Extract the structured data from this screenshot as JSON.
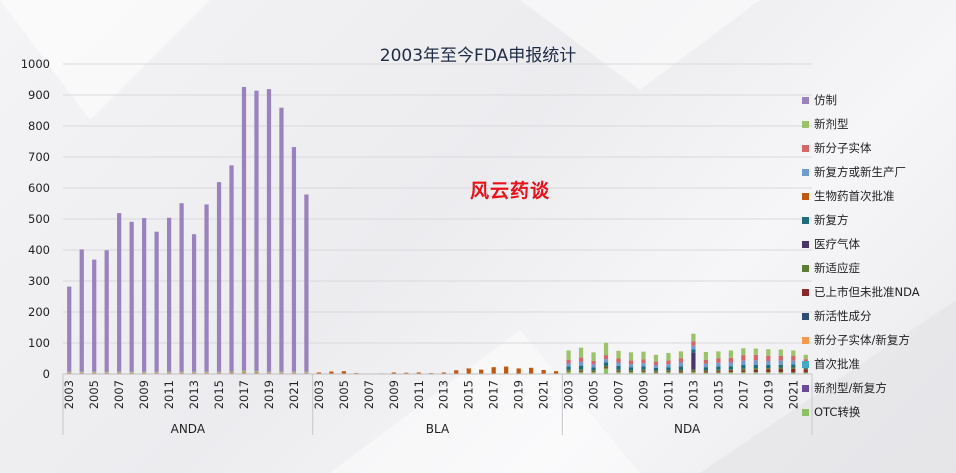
{
  "chart_data": {
    "type": "bar",
    "stacked": true,
    "title": "2003年至今FDA申报统计",
    "watermark": "风云药谈",
    "ylim": [
      0,
      1000
    ],
    "yticks": [
      0,
      100,
      200,
      300,
      400,
      500,
      600,
      700,
      800,
      900,
      1000
    ],
    "grid": true,
    "legend_position": "right",
    "years": [
      2003,
      2004,
      2005,
      2006,
      2007,
      2008,
      2009,
      2010,
      2011,
      2012,
      2013,
      2014,
      2015,
      2016,
      2017,
      2018,
      2019,
      2020,
      2021,
      2022
    ],
    "year_tick_labels": [
      "2003",
      "2005",
      "2007",
      "2009",
      "2011",
      "2013",
      "2015",
      "2017",
      "2019",
      "2021"
    ],
    "groups": [
      "ANDA",
      "BLA",
      "NDA"
    ],
    "series_order": [
      "仿制",
      "新剂型",
      "新分子实体",
      "新复方或新生产厂",
      "生物药首次批准",
      "新复方",
      "医疗气体",
      "新适应症",
      "已上市但未批准NDA",
      "新活性成分",
      "新分子实体/新复方",
      "首次批准",
      "新剂型/新复方",
      "OTC转换"
    ],
    "legend": [
      {
        "name": "仿制",
        "color": "#9a82bf"
      },
      {
        "name": "新剂型",
        "color": "#9dc36a"
      },
      {
        "name": "新分子实体",
        "color": "#d4666a"
      },
      {
        "name": "新复方或新生产厂",
        "color": "#6f9bd1"
      },
      {
        "name": "生物药首次批准",
        "color": "#c0590e"
      },
      {
        "name": "新复方",
        "color": "#1f6d7a"
      },
      {
        "name": "医疗气体",
        "color": "#4a3569"
      },
      {
        "name": "新适应症",
        "color": "#5e7c32"
      },
      {
        "name": "已上市但未批准NDA",
        "color": "#8b2a2a"
      },
      {
        "name": "新活性成分",
        "color": "#2f4d74"
      },
      {
        "name": "新分子实体/新复方",
        "color": "#f39a4e"
      },
      {
        "name": "首次批准",
        "color": "#45a9c4"
      },
      {
        "name": "新剂型/新复方",
        "color": "#6b4a9a"
      },
      {
        "name": "OTC转换",
        "color": "#8dc163"
      }
    ],
    "stacks": {
      "ANDA": {
        "仿制": [
          275,
          395,
          362,
          392,
          512,
          484,
          496,
          452,
          497,
          544,
          444,
          540,
          612,
          665,
          915,
          905,
          912,
          852,
          725,
          572
        ],
        "新剂型": [
          3,
          3,
          3,
          3,
          3,
          3,
          3,
          3,
          3,
          3,
          3,
          3,
          3,
          3,
          6,
          4,
          3,
          3,
          3,
          3
        ],
        "新分子实体": [
          2,
          2,
          2,
          2,
          2,
          2,
          2,
          2,
          2,
          2,
          2,
          2,
          2,
          3,
          3,
          3,
          2,
          2,
          2,
          2
        ],
        "生物药首次批准": [
          2,
          2,
          2,
          2,
          2,
          2,
          2,
          2,
          2,
          2,
          2,
          2,
          2,
          2,
          2,
          2,
          2,
          2,
          2,
          2
        ]
      },
      "BLA": {
        "生物药首次批准": [
          5,
          8,
          9,
          3,
          1,
          2,
          5,
          4,
          5,
          3,
          5,
          12,
          18,
          14,
          22,
          24,
          18,
          20,
          13,
          9
        ]
      },
      "NDA": {
        "新复方": [
          10,
          12,
          9,
          11,
          12,
          10,
          11,
          9,
          10,
          12,
          10,
          9,
          11,
          10,
          12,
          11,
          10,
          9,
          10,
          8
        ],
        "医疗气体": [
          0,
          0,
          0,
          0,
          0,
          0,
          0,
          0,
          0,
          0,
          55,
          0,
          0,
          0,
          0,
          0,
          0,
          0,
          0,
          0
        ],
        "新适应症": [
          4,
          5,
          4,
          5,
          5,
          4,
          5,
          4,
          4,
          5,
          5,
          4,
          5,
          4,
          5,
          5,
          4,
          5,
          4,
          3
        ],
        "已上市但未批准NDA": [
          2,
          3,
          2,
          3,
          3,
          2,
          3,
          2,
          2,
          3,
          3,
          4,
          4,
          5,
          6,
          8,
          9,
          10,
          12,
          10
        ],
        "新分子实体": [
          12,
          14,
          11,
          13,
          13,
          12,
          12,
          11,
          12,
          14,
          14,
          13,
          14,
          15,
          18,
          18,
          17,
          16,
          15,
          12
        ],
        "新复方或新生产厂": [
          10,
          12,
          10,
          11,
          11,
          10,
          10,
          9,
          10,
          12,
          12,
          11,
          11,
          12,
          14,
          14,
          13,
          13,
          12,
          10
        ],
        "新剂型": [
          30,
          32,
          28,
          40,
          25,
          26,
          25,
          22,
          24,
          22,
          25,
          25,
          23,
          24,
          22,
          20,
          21,
          20,
          18,
          14
        ],
        "OTC转换": [
          8,
          7,
          6,
          18,
          6,
          6,
          6,
          5,
          6,
          5,
          6,
          5,
          5,
          6,
          6,
          6,
          6,
          6,
          5,
          5
        ]
      }
    }
  }
}
